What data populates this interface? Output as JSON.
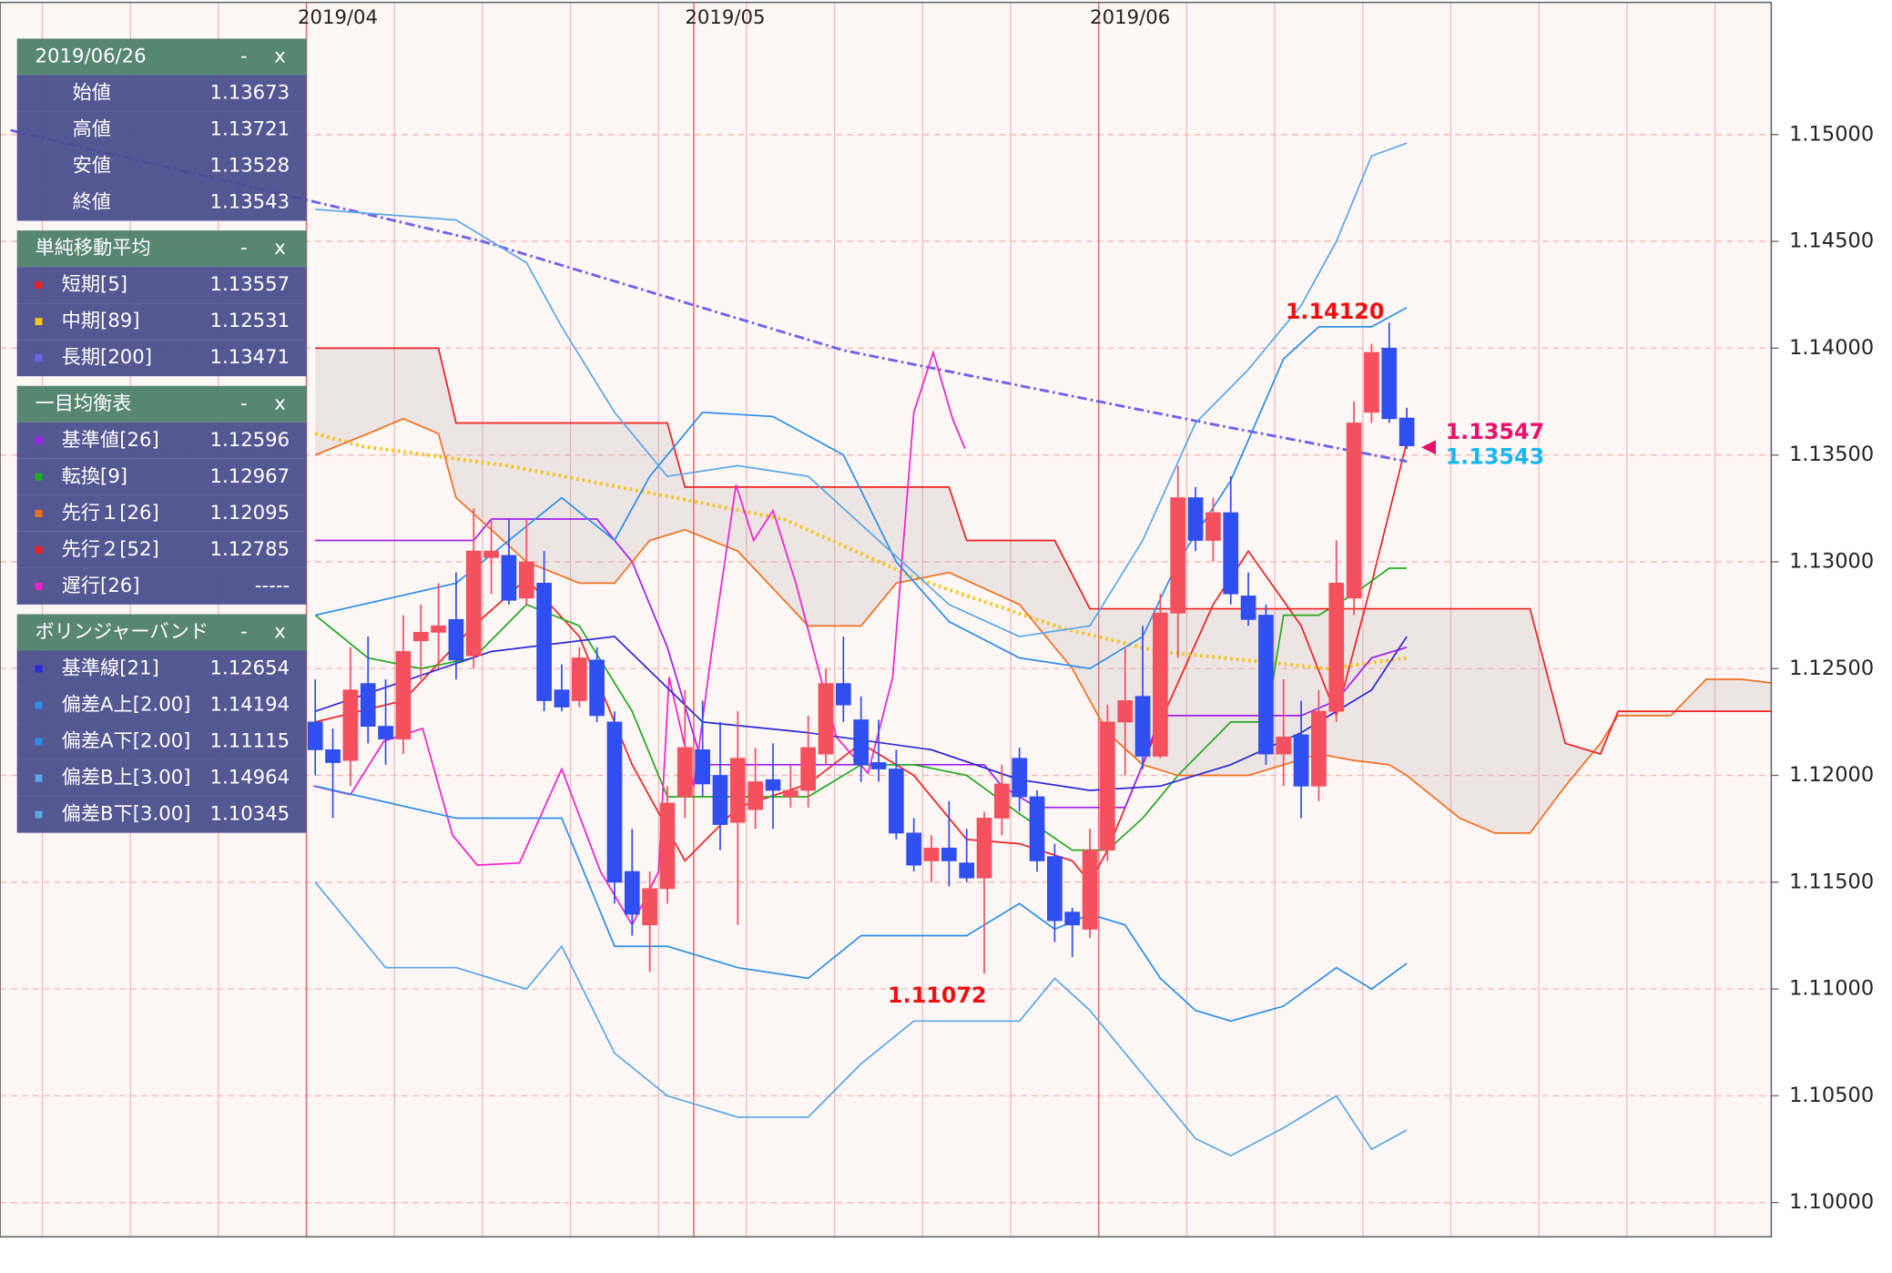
{
  "chart_data": {
    "type": "candlestick",
    "categories": [
      "2019/04",
      null,
      null,
      null,
      null,
      null,
      null,
      null,
      null,
      null,
      null,
      null,
      null,
      null,
      null,
      null,
      null,
      null,
      null,
      null,
      null,
      null,
      "2019/05",
      null,
      null,
      null,
      null,
      null,
      null,
      null,
      null,
      null,
      null,
      null,
      null,
      null,
      null,
      null,
      null,
      null,
      null,
      null,
      null,
      null,
      null,
      "2019/06",
      null,
      null,
      null,
      null,
      null,
      null,
      null,
      null,
      null,
      null,
      null,
      null,
      null,
      null,
      null,
      null,
      null
    ],
    "open": [
      1.1225,
      1.1212,
      1.1207,
      1.1243,
      1.1223,
      1.1217,
      1.1263,
      1.1267,
      1.1273,
      1.1256,
      1.1302,
      1.1303,
      1.1283,
      1.129,
      1.124,
      1.1235,
      1.1254,
      1.1225,
      1.1155,
      1.113,
      1.1147,
      1.119,
      1.1212,
      1.12,
      1.1178,
      1.1184,
      1.1198,
      1.119,
      1.1193,
      1.121,
      1.1243,
      1.1226,
      1.1206,
      1.1203,
      1.1173,
      1.116,
      1.1166,
      1.1159,
      1.1152,
      1.118,
      1.1208,
      1.119,
      1.1162,
      1.1136,
      1.1128,
      1.1165,
      1.1225,
      1.1237,
      1.1209,
      1.1276,
      1.133,
      1.131,
      1.1323,
      1.1284,
      1.1275,
      1.121,
      1.1219,
      1.1195,
      1.123,
      1.1283,
      1.137,
      1.14,
      1.13673
    ],
    "high": [
      1.1245,
      1.1222,
      1.126,
      1.1265,
      1.1245,
      1.1275,
      1.128,
      1.129,
      1.1295,
      1.1325,
      1.132,
      1.132,
      1.132,
      1.1305,
      1.1252,
      1.126,
      1.126,
      1.123,
      1.1175,
      1.1155,
      1.1195,
      1.124,
      1.1235,
      1.1225,
      1.123,
      1.1213,
      1.1215,
      1.1205,
      1.1228,
      1.125,
      1.1265,
      1.1237,
      1.1226,
      1.1212,
      1.118,
      1.1172,
      1.1188,
      1.1175,
      1.1183,
      1.1205,
      1.1213,
      1.1193,
      1.1168,
      1.1138,
      1.1175,
      1.1233,
      1.126,
      1.127,
      1.1285,
      1.1345,
      1.1335,
      1.133,
      1.134,
      1.1295,
      1.128,
      1.1245,
      1.1235,
      1.124,
      1.131,
      1.1375,
      1.1402,
      1.1412,
      1.13721
    ],
    "low": [
      1.12,
      1.118,
      1.1195,
      1.1215,
      1.1205,
      1.121,
      1.1245,
      1.125,
      1.1245,
      1.125,
      1.1285,
      1.128,
      1.128,
      1.123,
      1.123,
      1.1232,
      1.1225,
      1.114,
      1.1125,
      1.1108,
      1.114,
      1.118,
      1.119,
      1.1165,
      1.113,
      1.1175,
      1.1175,
      1.1185,
      1.1185,
      1.1205,
      1.1225,
      1.1197,
      1.1197,
      1.117,
      1.1155,
      1.115,
      1.1148,
      1.115,
      1.11072,
      1.1172,
      1.1183,
      1.1155,
      1.1122,
      1.1115,
      1.1124,
      1.116,
      1.12,
      1.1203,
      1.1208,
      1.1255,
      1.1305,
      1.13,
      1.128,
      1.127,
      1.1205,
      1.1195,
      1.118,
      1.1188,
      1.1225,
      1.1275,
      1.1365,
      1.1365,
      1.13528
    ],
    "close": [
      1.1212,
      1.1206,
      1.124,
      1.1223,
      1.1217,
      1.1258,
      1.1267,
      1.127,
      1.1254,
      1.1305,
      1.1305,
      1.1282,
      1.13,
      1.1235,
      1.1232,
      1.1255,
      1.1228,
      1.115,
      1.1135,
      1.1147,
      1.1187,
      1.1213,
      1.1196,
      1.1177,
      1.1208,
      1.1197,
      1.1193,
      1.1193,
      1.1213,
      1.1243,
      1.1233,
      1.1205,
      1.1203,
      1.1173,
      1.1158,
      1.1166,
      1.116,
      1.1152,
      1.118,
      1.1196,
      1.119,
      1.116,
      1.1132,
      1.113,
      1.1165,
      1.1225,
      1.1235,
      1.1209,
      1.1276,
      1.133,
      1.131,
      1.1323,
      1.1285,
      1.1273,
      1.121,
      1.1218,
      1.1195,
      1.123,
      1.129,
      1.1365,
      1.1398,
      1.1367,
      1.13543
    ],
    "up_color": "#f4505e",
    "down_color": "#2f4ff0",
    "xlim": [
      -17.9,
      82.7
    ],
    "ylim": [
      1.0984,
      1.1563
    ],
    "yticks": [
      {
        "value": 1.1,
        "label": "1.10000"
      },
      {
        "value": 1.105,
        "label": "1.10500"
      },
      {
        "value": 1.11,
        "label": "1.11000"
      },
      {
        "value": 1.115,
        "label": "1.11500"
      },
      {
        "value": 1.12,
        "label": "1.12000"
      },
      {
        "value": 1.125,
        "label": "1.12500"
      },
      {
        "value": 1.13,
        "label": "1.13000"
      },
      {
        "value": 1.135,
        "label": "1.13500"
      },
      {
        "value": 1.14,
        "label": "1.14000"
      },
      {
        "value": 1.145,
        "label": "1.14500"
      },
      {
        "value": 1.15,
        "label": "1.15000"
      }
    ],
    "grid": true,
    "info_panel": {
      "date": "2019/06/26",
      "buttons": [
        "-",
        "x"
      ],
      "ohlc_labels": [
        "始値",
        "高値",
        "安値",
        "終値"
      ],
      "ohlc_values": [
        1.13673,
        1.13721,
        1.13528,
        1.13543
      ]
    },
    "indicator_groups": [
      {
        "title": "単純移動平均",
        "series": [
          {
            "name": "短期[5]",
            "color": "#ee2222",
            "style": "solid",
            "legend_value": 1.13557,
            "x": [
              0,
              5,
              9,
              12,
              15,
              18,
              21,
              24,
              28,
              31,
              34,
              37,
              40,
              43,
              44,
              45,
              48,
              51,
              53,
              56,
              58,
              60,
              62
            ],
            "values": [
              1.1225,
              1.1235,
              1.127,
              1.1292,
              1.1265,
              1.1205,
              1.116,
              1.1185,
              1.1196,
              1.1215,
              1.12,
              1.117,
              1.1168,
              1.116,
              1.115,
              1.1165,
              1.1225,
              1.128,
              1.1305,
              1.127,
              1.1228,
              1.129,
              1.1356
            ]
          },
          {
            "name": "中期[89]",
            "color": "#f5c518",
            "style": "dotted",
            "legend_value": 1.12531,
            "x": [
              0,
              2.7,
              10.9,
              19.8,
              26.6,
              34.2,
              42.4,
              47.9,
              54,
              57.5,
              62
            ],
            "values": [
              1.136,
              1.1354,
              1.1345,
              1.1331,
              1.132,
              1.1292,
              1.1269,
              1.1258,
              1.1253,
              1.125,
              1.1255
            ]
          },
          {
            "name": "長期[200]",
            "color": "#6f63ee",
            "style": "dashdot",
            "legend_value": 1.13471,
            "x": [
              -17.3,
              9.5,
              30,
              50.6,
              62
            ],
            "values": [
              1.1502,
              1.145,
              1.1399,
              1.1365,
              1.1347
            ]
          }
        ]
      },
      {
        "title": "一目均衡表",
        "series": [
          {
            "name": "基準値[26]",
            "color": "#a020f0",
            "style": "solid",
            "legend_value": 1.12596,
            "x": [
              0,
              9,
              10,
              16,
              18,
              20,
              22,
              30,
              38,
              39,
              41,
              46,
              47,
              48,
              56,
              58,
              60,
              62
            ],
            "values": [
              1.131,
              1.131,
              1.132,
              1.132,
              1.13,
              1.126,
              1.1205,
              1.1205,
              1.1205,
              1.1195,
              1.1185,
              1.1185,
              1.1205,
              1.1228,
              1.1228,
              1.1235,
              1.1255,
              1.126
            ]
          },
          {
            "name": "転換[9]",
            "color": "#22aa22",
            "style": "solid",
            "legend_value": 1.12967,
            "x": [
              0,
              3,
              6,
              9,
              12,
              15,
              18,
              20,
              24,
              28,
              31,
              34,
              37,
              40,
              43,
              45,
              47,
              49,
              52,
              54,
              55,
              57,
              59,
              61,
              62
            ],
            "values": [
              1.1275,
              1.1255,
              1.125,
              1.1255,
              1.128,
              1.127,
              1.123,
              1.119,
              1.119,
              1.119,
              1.1205,
              1.1205,
              1.12,
              1.1182,
              1.1165,
              1.1165,
              1.118,
              1.12,
              1.1225,
              1.1225,
              1.1275,
              1.1275,
              1.1285,
              1.1297,
              1.1297
            ]
          },
          {
            "name": "先行１[26]",
            "color": "#f07020",
            "style": "solid",
            "legend_value": 1.12095,
            "x": [
              0,
              3,
              5,
              7,
              8,
              12,
              15,
              17,
              19,
              21,
              24,
              28,
              31,
              33,
              36,
              40,
              43,
              45,
              47,
              49,
              53,
              55,
              57,
              59,
              61,
              62,
              65,
              67,
              69,
              71,
              73,
              74,
              77,
              79,
              81,
              83
            ],
            "values": [
              1.135,
              1.136,
              1.1367,
              1.136,
              1.133,
              1.13,
              1.129,
              1.129,
              1.131,
              1.1315,
              1.1305,
              1.127,
              1.127,
              1.129,
              1.1295,
              1.128,
              1.125,
              1.122,
              1.1205,
              1.12,
              1.12,
              1.1205,
              1.121,
              1.1207,
              1.1205,
              1.12,
              1.118,
              1.1173,
              1.1173,
              1.1195,
              1.1215,
              1.1228,
              1.1228,
              1.1245,
              1.1245,
              1.1243
            ]
          },
          {
            "name": "先行２[52]",
            "color": "#ee2020",
            "style": "solid",
            "legend_value": 1.12785,
            "x": [
              0,
              7,
              8,
              20,
              21,
              36,
              37,
              42,
              44,
              62,
              69,
              71,
              73,
              74,
              83
            ],
            "values": [
              1.14,
              1.14,
              1.1365,
              1.1365,
              1.1335,
              1.1335,
              1.131,
              1.131,
              1.1278,
              1.1278,
              1.1278,
              1.1215,
              1.121,
              1.123,
              1.123
            ]
          },
          {
            "name": "遅行[26]",
            "color": "#ee22cc",
            "style": "solid",
            "legend_value": "-----",
            "x": [
              -0.1,
              2,
              3.9,
              6.1,
              7.8,
              9.2,
              11.6,
              14,
              16.2,
              18,
              19.5,
              20.1,
              21.5,
              22.5,
              23.9,
              24.9,
              26,
              27.3,
              28.7,
              29.6,
              31.4,
              32.8,
              34,
              35.1,
              36.2,
              36.9
            ],
            "values": [
              1.1195,
              1.1191,
              1.1216,
              1.1222,
              1.1172,
              1.1158,
              1.1159,
              1.1203,
              1.1155,
              1.113,
              1.1155,
              1.1246,
              1.1195,
              1.1257,
              1.1336,
              1.131,
              1.1324,
              1.129,
              1.1246,
              1.1218,
              1.1201,
              1.1246,
              1.137,
              1.1398,
              1.1367,
              1.1353
            ]
          }
        ]
      },
      {
        "title": "ボリンジャーバンド",
        "series": [
          {
            "name": "基準線[21]",
            "color": "#2a2ad8",
            "style": "solid",
            "legend_value": 1.12654,
            "x": [
              0,
              10,
              17,
              22,
              28,
              35,
              40,
              44,
              48,
              52,
              56,
              60,
              62
            ],
            "values": [
              1.123,
              1.1258,
              1.1265,
              1.1225,
              1.122,
              1.1212,
              1.1198,
              1.1193,
              1.1195,
              1.1205,
              1.122,
              1.124,
              1.1265
            ]
          },
          {
            "name": "偏差A上[2.00]",
            "color": "#2b8fe8",
            "style": "solid",
            "legend_value": 1.14194,
            "x": [
              0,
              8,
              14,
              17,
              19,
              22,
              26,
              30,
              33,
              36,
              40,
              44,
              47,
              49,
              52,
              55,
              57,
              60,
              62
            ],
            "values": [
              1.1275,
              1.129,
              1.133,
              1.131,
              1.134,
              1.137,
              1.1368,
              1.135,
              1.13,
              1.1272,
              1.1255,
              1.125,
              1.1265,
              1.13,
              1.1338,
              1.1395,
              1.141,
              1.141,
              1.1419
            ]
          },
          {
            "name": "偏差A下[2.00]",
            "color": "#2b8fe8",
            "style": "solid",
            "legend_value": 1.11115,
            "x": [
              0,
              8,
              14,
              17,
              20,
              24,
              28,
              31,
              34,
              37,
              40,
              42,
              44,
              46,
              48,
              50,
              52,
              55,
              58,
              60,
              62
            ],
            "values": [
              1.1195,
              1.118,
              1.118,
              1.112,
              1.112,
              1.111,
              1.1105,
              1.1125,
              1.1125,
              1.1125,
              1.114,
              1.1128,
              1.1135,
              1.113,
              1.1105,
              1.109,
              1.1085,
              1.1092,
              1.111,
              1.11,
              1.1112
            ]
          },
          {
            "name": "偏差B上[3.00]",
            "color": "#5aa8e8",
            "style": "solid",
            "legend_value": 1.14964,
            "x": [
              0,
              8,
              12,
              14,
              17,
              20,
              24,
              28,
              32,
              36,
              40,
              44,
              47,
              50,
              53,
              56,
              58,
              60,
              62
            ],
            "values": [
              1.1465,
              1.146,
              1.144,
              1.141,
              1.137,
              1.134,
              1.1345,
              1.134,
              1.131,
              1.128,
              1.1265,
              1.127,
              1.131,
              1.1365,
              1.139,
              1.142,
              1.145,
              1.149,
              1.1496
            ]
          },
          {
            "name": "偏差B下[3.00]",
            "color": "#5aa8e8",
            "style": "solid",
            "legend_value": 1.10345,
            "x": [
              0,
              4,
              8,
              12,
              14,
              17,
              20,
              24,
              28,
              31,
              34,
              37,
              40,
              42,
              44,
              48,
              50,
              52,
              55,
              58,
              60,
              62
            ],
            "values": [
              1.115,
              1.111,
              1.111,
              1.11,
              1.112,
              1.107,
              1.105,
              1.104,
              1.104,
              1.1065,
              1.1085,
              1.1085,
              1.1085,
              1.1105,
              1.109,
              1.105,
              1.103,
              1.1022,
              1.1035,
              1.105,
              1.1025,
              1.1034
            ]
          }
        ]
      }
    ],
    "annotations": [
      {
        "kind": "high",
        "value": {
          "value": 1.1412,
          "label": "1.14120"
        },
        "color": "#ee1111"
      },
      {
        "kind": "low",
        "value": 1.11072,
        "color": "#ee1111"
      }
    ],
    "price_markers": [
      {
        "value": 1.13547,
        "color": "#e8106a"
      },
      {
        "value": 1.13543,
        "color": "#18b8ee"
      }
    ]
  }
}
